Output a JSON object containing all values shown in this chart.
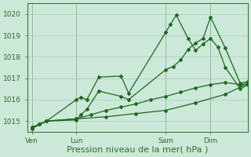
{
  "bg_color": "#cce8d8",
  "grid_color": "#aaccbb",
  "line_color": "#1a6b1a",
  "axis_color": "#2d6e2d",
  "xlabel": "Pression niveau de la mer( hPa )",
  "ylim": [
    1014.5,
    1020.5
  ],
  "yticks": [
    1015,
    1016,
    1017,
    1018,
    1019,
    1020
  ],
  "xtick_labels": [
    "Ven",
    "Lun",
    "Sam",
    "Dim"
  ],
  "xtick_positions": [
    0,
    3,
    9,
    12
  ],
  "xlim": [
    -0.3,
    14.5
  ],
  "series": [
    {
      "x": [
        0,
        0.5,
        1,
        3,
        3.3,
        3.7,
        4.5,
        6,
        6.5,
        9,
        9.3,
        9.7,
        10.5,
        11,
        11.5,
        12,
        12.5,
        13,
        14,
        14.5
      ],
      "y": [
        1014.7,
        1014.85,
        1015.0,
        1016.0,
        1016.1,
        1016.0,
        1017.05,
        1017.1,
        1016.3,
        1019.15,
        1019.5,
        1019.95,
        1018.85,
        1018.3,
        1018.6,
        1018.85,
        1018.45,
        1017.5,
        1016.5,
        1016.7
      ]
    },
    {
      "x": [
        0,
        0.5,
        1,
        3,
        3.3,
        3.7,
        4.5,
        6,
        6.5,
        9,
        9.5,
        10,
        10.5,
        11,
        11.5,
        12,
        13,
        14,
        14.5
      ],
      "y": [
        1014.7,
        1014.85,
        1015.0,
        1015.05,
        1015.3,
        1015.55,
        1016.4,
        1016.15,
        1016.0,
        1017.4,
        1017.55,
        1017.85,
        1018.35,
        1018.65,
        1018.85,
        1019.85,
        1018.4,
        1016.75,
        1016.85
      ]
    },
    {
      "x": [
        0,
        0.5,
        1,
        3,
        4,
        5,
        6,
        7,
        8,
        9,
        10,
        11,
        12,
        13,
        14,
        14.5
      ],
      "y": [
        1014.65,
        1014.85,
        1015.0,
        1015.1,
        1015.3,
        1015.5,
        1015.65,
        1015.8,
        1016.0,
        1016.15,
        1016.35,
        1016.55,
        1016.7,
        1016.8,
        1016.7,
        1016.75
      ]
    },
    {
      "x": [
        0,
        1,
        3,
        5,
        7,
        9,
        11,
        13,
        14.5
      ],
      "y": [
        1014.65,
        1015.0,
        1015.1,
        1015.2,
        1015.35,
        1015.5,
        1015.85,
        1016.25,
        1016.75
      ]
    }
  ],
  "marker": "D",
  "marker_size": 2.0,
  "line_width": 0.9,
  "vlines": [
    0,
    3,
    9,
    12
  ],
  "title_fontsize": 8,
  "tick_fontsize": 6.5
}
